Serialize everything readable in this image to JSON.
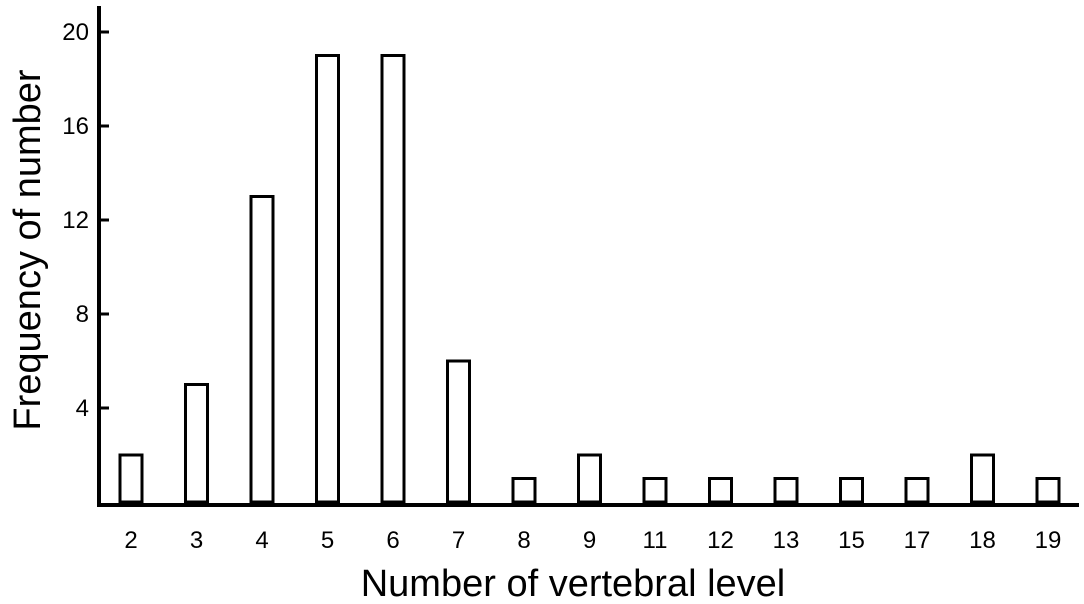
{
  "chart_data": {
    "type": "bar",
    "title": "",
    "xlabel": "Number of vertebral level",
    "ylabel": "Frequency of number",
    "categories": [
      "2",
      "3",
      "4",
      "5",
      "6",
      "7",
      "8",
      "9",
      "11",
      "12",
      "13",
      "15",
      "17",
      "18",
      "19"
    ],
    "values": [
      2,
      5,
      13,
      19,
      19,
      6,
      1,
      2,
      1,
      1,
      1,
      1,
      1,
      2,
      1
    ],
    "ylim": [
      0,
      21
    ],
    "yticks": [
      4,
      8,
      12,
      16,
      20
    ],
    "grid": false,
    "legend": "none",
    "colors": {
      "bar_fill": "#ffffff",
      "bar_stroke": "#000000",
      "axis": "#000000"
    }
  }
}
